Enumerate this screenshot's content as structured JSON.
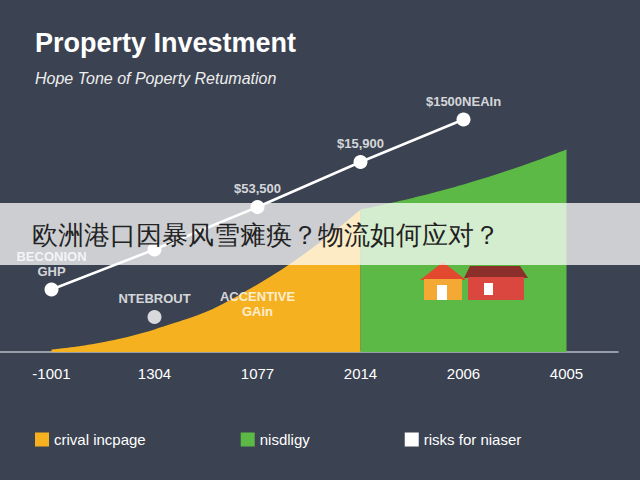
{
  "chart_data": {
    "type": "line",
    "title": "Property Investment",
    "subtitle": "Hope Tone of Poperty Retumation",
    "overlay_text": "欧洲港口因暴风雪瘫痪？物流如何应对？",
    "categories": [
      "-1001",
      "1304",
      "1077",
      "2014",
      "2006",
      "4005"
    ],
    "ylim": [
      0,
      100
    ],
    "tick_labels": "x",
    "grid": false,
    "legend": "bottom",
    "series": [
      {
        "name": "crival incpage",
        "type": "area",
        "color": "#f5b120",
        "values": [
          1,
          9,
          27,
          57,
          null,
          null
        ]
      },
      {
        "name": "nisdligy",
        "type": "area",
        "color": "#5cb946",
        "values": [
          null,
          null,
          null,
          57,
          67,
          81
        ]
      },
      {
        "name": "risks for niaser",
        "type": "line",
        "color": "#ffffff",
        "marker": "circle",
        "values": [
          25,
          41,
          58,
          76,
          93,
          null
        ]
      },
      {
        "type": "scatter",
        "color": "#ffffff",
        "marker": "circle",
        "values": [
          null,
          14,
          null,
          null,
          null,
          null
        ]
      }
    ],
    "annotations": [
      {
        "text": "BECONION\nGHP",
        "x": "-1001",
        "y": 25
      },
      {
        "text": "NTEBROUT",
        "x": "1304",
        "y": 14
      },
      {
        "text": "$53,500",
        "x": "1077",
        "y": 58
      },
      {
        "text": "$15,900",
        "x": "2014",
        "y": 76
      },
      {
        "text": "$1500NEAIn",
        "x": "2006",
        "y": 93
      },
      {
        "text": "ACCENTIVE\nGAin",
        "x": "1077",
        "y": 9
      }
    ]
  }
}
